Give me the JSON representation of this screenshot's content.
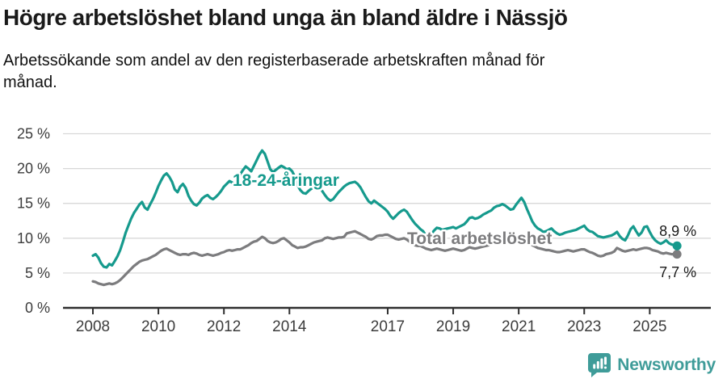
{
  "header": {
    "title": "Högre arbetslöshet bland unga än bland äldre i Nässjö",
    "subtitle": "Arbetssökande som andel av den registerbaserade arbetskraften månad för\nmånad."
  },
  "brand": {
    "name": "Newsworthy",
    "color": "#3f9c99",
    "icon": "newsworthy-speech-bubble-bar-chart"
  },
  "colors": {
    "youth_line": "#169a8d",
    "total_line": "#7c7c7e",
    "axis_text": "#3c3c3c",
    "grid_line": "#d8d8d8",
    "axis_line": "#2e2e2e",
    "annotation_text": "#1a1a1a"
  },
  "chart_data": {
    "type": "line",
    "title": "Högre arbetslöshet bland unga än bland äldre i Nässjö",
    "xlabel": "",
    "ylabel": "Arbetssökande som andel av den registerbaserade arbetskraften",
    "ylim": [
      0,
      25
    ],
    "grid": true,
    "x_unit": "month",
    "start_year": 2008,
    "x_tick_years": [
      2008,
      2010,
      2012,
      2014,
      2017,
      2019,
      2021,
      2023,
      2025
    ],
    "x_tick_labels": [
      "2008",
      "2010",
      "2012",
      "2014",
      "2017",
      "2019",
      "2021",
      "2023",
      "2025"
    ],
    "y_ticks": [
      0,
      5,
      10,
      15,
      20,
      25
    ],
    "y_tick_suffix": " %",
    "series": [
      {
        "name": "18-24-åringar",
        "color": "#169a8d",
        "end_label": "8,9 %",
        "end_value": 8.9,
        "values": [
          7.5,
          7.7,
          7.2,
          6.4,
          5.9,
          5.8,
          6.3,
          6.1,
          6.7,
          7.4,
          8.3,
          9.5,
          10.8,
          11.8,
          12.8,
          13.6,
          14.2,
          14.8,
          15.2,
          14.4,
          14.1,
          14.9,
          15.6,
          16.5,
          17.5,
          18.3,
          19.0,
          19.3,
          18.8,
          18.1,
          17.0,
          16.6,
          17.4,
          17.8,
          17.2,
          16.1,
          15.4,
          14.9,
          14.7,
          15.1,
          15.7,
          16.0,
          16.2,
          15.8,
          15.6,
          15.9,
          16.3,
          16.8,
          17.4,
          17.8,
          18.2,
          18.0,
          17.7,
          18.3,
          19.2,
          19.8,
          20.3,
          20.0,
          19.6,
          20.4,
          21.2,
          22.0,
          22.6,
          22.1,
          21.0,
          19.9,
          19.5,
          19.8,
          20.1,
          20.4,
          20.2,
          19.9,
          20.0,
          19.6,
          18.8,
          17.6,
          16.9,
          16.5,
          16.4,
          16.8,
          17.1,
          17.3,
          17.5,
          17.2,
          16.8,
          16.2,
          15.7,
          15.4,
          15.6,
          16.1,
          16.6,
          17.0,
          17.4,
          17.7,
          17.9,
          18.0,
          18.1,
          17.8,
          17.3,
          16.6,
          15.9,
          15.3,
          15.0,
          15.4,
          15.1,
          14.8,
          14.5,
          14.2,
          13.8,
          13.2,
          12.8,
          13.2,
          13.6,
          13.9,
          14.1,
          13.8,
          13.2,
          12.6,
          12.1,
          11.7,
          11.3,
          11.0,
          10.4,
          10.3,
          10.6,
          11.1,
          11.5,
          11.4,
          11.2,
          11.3,
          11.4,
          11.5,
          11.6,
          11.4,
          11.6,
          11.8,
          12.0,
          12.4,
          12.9,
          13.0,
          12.8,
          12.9,
          13.1,
          13.4,
          13.6,
          13.8,
          14.0,
          14.4,
          14.6,
          14.7,
          14.9,
          14.7,
          14.4,
          14.1,
          14.2,
          14.8,
          15.3,
          15.8,
          15.2,
          14.2,
          13.3,
          12.4,
          11.8,
          11.4,
          11.2,
          10.9,
          11.0,
          11.2,
          11.4,
          11.0,
          10.7,
          10.5,
          10.6,
          10.8,
          10.9,
          11.0,
          11.1,
          11.2,
          11.4,
          11.6,
          11.8,
          11.3,
          11.0,
          10.9,
          10.6,
          10.3,
          10.2,
          10.1,
          10.2,
          10.3,
          10.4,
          10.6,
          10.9,
          10.3,
          9.9,
          9.7,
          10.4,
          11.3,
          11.7,
          11.0,
          10.4,
          10.8,
          11.6,
          11.7,
          10.9,
          10.2,
          9.7,
          9.4,
          9.2,
          9.4,
          9.7,
          9.3,
          9.1,
          9.0,
          8.9
        ]
      },
      {
        "name": "Total arbetslöshet",
        "color": "#7c7c7e",
        "end_label": "7,7 %",
        "end_value": 7.7,
        "values": [
          3.8,
          3.7,
          3.5,
          3.4,
          3.3,
          3.4,
          3.5,
          3.4,
          3.5,
          3.7,
          4.0,
          4.4,
          4.8,
          5.2,
          5.6,
          6.0,
          6.3,
          6.6,
          6.8,
          6.9,
          7.0,
          7.2,
          7.4,
          7.6,
          7.9,
          8.2,
          8.4,
          8.5,
          8.3,
          8.1,
          7.9,
          7.7,
          7.6,
          7.7,
          7.7,
          7.6,
          7.8,
          7.9,
          7.8,
          7.6,
          7.5,
          7.6,
          7.7,
          7.6,
          7.5,
          7.6,
          7.7,
          7.9,
          8.0,
          8.2,
          8.3,
          8.2,
          8.3,
          8.4,
          8.4,
          8.6,
          8.8,
          9.0,
          9.3,
          9.5,
          9.6,
          9.9,
          10.2,
          10.0,
          9.6,
          9.4,
          9.3,
          9.4,
          9.6,
          9.9,
          10.0,
          9.7,
          9.4,
          9.0,
          8.8,
          8.6,
          8.7,
          8.7,
          8.8,
          9.0,
          9.2,
          9.4,
          9.5,
          9.6,
          9.7,
          10.0,
          10.1,
          10.0,
          9.9,
          10.0,
          10.1,
          10.1,
          10.2,
          10.7,
          10.8,
          10.9,
          11.0,
          10.8,
          10.6,
          10.4,
          10.2,
          9.9,
          9.8,
          10.0,
          10.3,
          10.4,
          10.4,
          10.5,
          10.5,
          10.3,
          10.1,
          9.9,
          9.8,
          9.9,
          10.0,
          9.8,
          9.5,
          9.2,
          9.0,
          8.9,
          8.9,
          8.7,
          8.5,
          8.4,
          8.3,
          8.4,
          8.5,
          8.4,
          8.3,
          8.2,
          8.3,
          8.4,
          8.5,
          8.4,
          8.3,
          8.2,
          8.3,
          8.5,
          8.7,
          8.6,
          8.5,
          8.6,
          8.7,
          8.8,
          8.9,
          9.0,
          9.2,
          9.6,
          9.9,
          10.1,
          10.2,
          10.1,
          10.0,
          9.9,
          9.8,
          9.9,
          10.0,
          10.1,
          9.9,
          9.6,
          9.3,
          9.0,
          8.8,
          8.6,
          8.5,
          8.4,
          8.3,
          8.3,
          8.2,
          8.1,
          8.0,
          8.0,
          8.1,
          8.2,
          8.3,
          8.2,
          8.1,
          8.2,
          8.3,
          8.4,
          8.4,
          8.2,
          8.0,
          7.9,
          7.7,
          7.5,
          7.4,
          7.5,
          7.7,
          7.8,
          7.9,
          8.1,
          8.6,
          8.4,
          8.2,
          8.1,
          8.2,
          8.3,
          8.4,
          8.3,
          8.4,
          8.5,
          8.6,
          8.6,
          8.5,
          8.3,
          8.2,
          8.1,
          7.9,
          7.8,
          7.9,
          7.8,
          7.7,
          7.7,
          7.7
        ]
      }
    ],
    "annotations": {
      "youth_label": "18-24-åringar",
      "total_label": "Total arbetslöshet",
      "youth_end_label": "8,9 %",
      "total_end_label": "7,7 %"
    },
    "legend_position": "inline-labels"
  }
}
